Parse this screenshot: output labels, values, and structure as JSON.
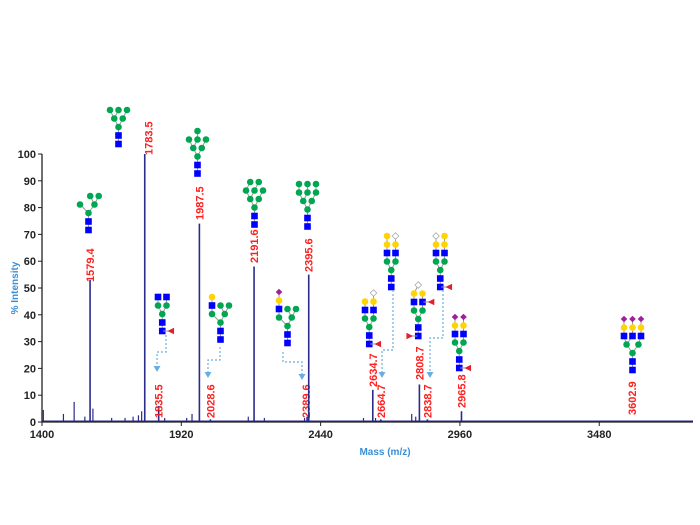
{
  "chart_data": {
    "type": "bar",
    "title": "",
    "xlabel": "Mass (m/z)",
    "ylabel": "% Intensity",
    "xlim": [
      1400,
      3830
    ],
    "ylim": [
      0,
      100
    ],
    "xticks": [
      1400,
      1920,
      2440,
      2960,
      3480
    ],
    "yticks": [
      0,
      10,
      20,
      30,
      40,
      50,
      60,
      70,
      80,
      90,
      100
    ],
    "grid": false,
    "colors": {
      "spectrum": "#2b2b8c",
      "peak_label": "#ff2020",
      "axis_label": "#3a8fd6",
      "arrow": "#6aaee0"
    },
    "peaks": [
      {
        "mz": 1579.4,
        "label": "1579.4",
        "intensity": 53
      },
      {
        "mz": 1783.5,
        "label": "1783.5",
        "intensity": 100
      },
      {
        "mz": 1835.5,
        "label": "1835.5",
        "intensity": 6
      },
      {
        "mz": 1987.5,
        "label": "1987.5",
        "intensity": 74
      },
      {
        "mz": 2028.6,
        "label": "2028.6",
        "intensity": 1
      },
      {
        "mz": 2191.6,
        "label": "2191.6",
        "intensity": 58
      },
      {
        "mz": 2389.6,
        "label": "2389.6",
        "intensity": 2
      },
      {
        "mz": 2395.6,
        "label": "2395.6",
        "intensity": 55
      },
      {
        "mz": 2634.7,
        "label": "2634.7",
        "intensity": 12
      },
      {
        "mz": 2664.7,
        "label": "2664.7",
        "intensity": 1
      },
      {
        "mz": 2808.7,
        "label": "2808.7",
        "intensity": 14
      },
      {
        "mz": 2838.7,
        "label": "2838.7",
        "intensity": 1
      },
      {
        "mz": 2965.8,
        "label": "2965.8",
        "intensity": 4
      },
      {
        "mz": 3602.9,
        "label": "3602.9",
        "intensity": 0.5
      }
    ],
    "minor_peaks": [
      {
        "mz": 1405,
        "intensity": 4.5
      },
      {
        "mz": 1480,
        "intensity": 3
      },
      {
        "mz": 1520,
        "intensity": 7.5
      },
      {
        "mz": 1560,
        "intensity": 2
      },
      {
        "mz": 1590,
        "intensity": 5
      },
      {
        "mz": 1660,
        "intensity": 1.5
      },
      {
        "mz": 1710,
        "intensity": 1.5
      },
      {
        "mz": 1740,
        "intensity": 2
      },
      {
        "mz": 1760,
        "intensity": 2.5
      },
      {
        "mz": 1772,
        "intensity": 4
      },
      {
        "mz": 1858,
        "intensity": 1.5
      },
      {
        "mz": 1960,
        "intensity": 3
      },
      {
        "mz": 1940,
        "intensity": 1.5
      },
      {
        "mz": 2170,
        "intensity": 2
      },
      {
        "mz": 2230,
        "intensity": 1.5
      },
      {
        "mz": 2380,
        "intensity": 1.5
      },
      {
        "mz": 2600,
        "intensity": 1.5
      },
      {
        "mz": 2645,
        "intensity": 1.5
      },
      {
        "mz": 2780,
        "intensity": 3
      },
      {
        "mz": 2795,
        "intensity": 2
      }
    ]
  }
}
